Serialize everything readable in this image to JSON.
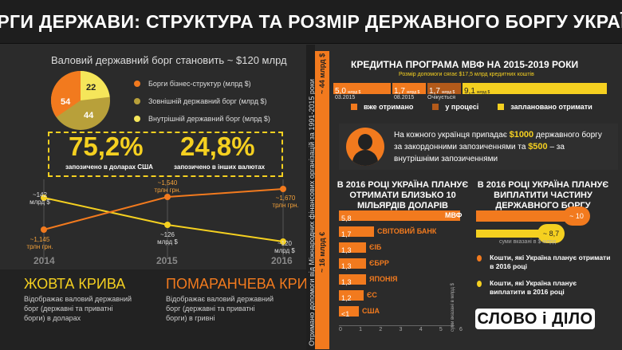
{
  "header": {
    "title": "БОРГИ ДЕРЖАВИ: СТРУКТУРА ТА РОЗМІР ДЕРЖАВНОГО БОРГУ УКРАЇНИ"
  },
  "gross_debt": {
    "title": "Валовий державний борг становить ~ $120 млрд",
    "legend": [
      {
        "label": "Борги бізнес-структур (млрд $)",
        "color": "#f27a1e",
        "value": "54"
      },
      {
        "label": "Зовнішній державний борг (млрд $)",
        "color": "#b8a03a",
        "value": "44"
      },
      {
        "label": "Внутрішній державний борг (млрд $)",
        "color": "#f5e65a",
        "value": "22"
      }
    ]
  },
  "currency_split": {
    "usd_pct": "75,2%",
    "usd_label": "запозичено в доларах США",
    "other_pct": "24,8%",
    "other_label": "запозичено в інших валютах"
  },
  "line_chart": {
    "years": [
      "2014",
      "2015",
      "2016"
    ],
    "orange_labels": [
      "~1,145\nтрлн грн.",
      "~1,540\nтрлн грн.",
      "~1,670\nтрлн грн."
    ],
    "yellow_labels": [
      "~142\nмлрд $",
      "~126\nмлрд $",
      "~120\nмлрд $"
    ]
  },
  "legend_bottom": {
    "yellow_title": "ЖОВТА КРИВА",
    "yellow_desc": "Відображає валовий державний борг (державні та приватні борги) в доларах",
    "orange_title": "ПОМАРАНЧЕВА КРИВА",
    "orange_desc": "Відображає валовий державний борг (державні та приватні борги) в гривні"
  },
  "vertical": {
    "text": "Отримано допомоги від Міжнародних фінансових організацій за 1991-2015 роки",
    "top_value": "~ 44 млрд $",
    "bottom_value": "~ 16 млрд €"
  },
  "imf": {
    "title": "КРЕДИТНА ПРОГРАМА МВФ НА 2015-2019 РОКИ",
    "subtitle": "Розмір допомоги сягає $17,5 млрд кредитних коштів",
    "segments": [
      {
        "value": "5,0",
        "unit": "млрд $",
        "date": "03.2015",
        "status": "received"
      },
      {
        "value": "1,7",
        "unit": "млрд $",
        "date": "08.2015",
        "status": "received"
      },
      {
        "value": "1,7",
        "unit": "млрд $",
        "date": "Очікується",
        "status": "process"
      },
      {
        "value": "9,1",
        "unit": "млрд $",
        "date": "",
        "status": "planned"
      }
    ],
    "legend": [
      {
        "label": "вже отримано",
        "color": "#f27a1e"
      },
      {
        "label": "у процесі",
        "color": "#b35a1a"
      },
      {
        "label": "заплановано отримати",
        "color": "#f5d020"
      }
    ]
  },
  "per_capita": {
    "text_a": "На кожного українця припадає ",
    "amount1": "$1000",
    "text_b": " державного боргу за закордонними запозиченнями та ",
    "amount2": "$500",
    "text_c": " – за внутрішніми запозиченнями"
  },
  "credits_2016": {
    "title": "В 2016 РОЦІ УКРАЇНА ПЛАНУЄ ОТРИМАТИ БЛИЗЬКО 10 МІЛЬЯРДІВ ДОЛАРІВ КРЕДИТНИХ КОШТІВ",
    "axis_label": "суми вказані в млрд $",
    "ticks": [
      "0",
      "1",
      "2",
      "3",
      "4",
      "5",
      "6"
    ],
    "bars": [
      {
        "value": "5,8",
        "label": "МВФ"
      },
      {
        "value": "1,7",
        "label": "СВІТОВИЙ БАНК"
      },
      {
        "value": "1,3",
        "label": "ЄІБ"
      },
      {
        "value": "1,3",
        "label": "ЄБРР"
      },
      {
        "value": "1,3",
        "label": "ЯПОНІЯ"
      },
      {
        "value": "1,2",
        "label": "ЄС"
      },
      {
        "value": "<1",
        "label": "США"
      }
    ]
  },
  "repay_2016": {
    "title": "В 2016 РОЦІ УКРАЇНА ПЛАНУЄ ВИПЛАТИТИ ЧАСТИНУ ДЕРЖАВНОГО БОРГУ",
    "receive_value": "~ 10",
    "pay_value": "~ 8,7",
    "axis_label": "суми вказані в $ млрд",
    "legend": [
      {
        "label": "Кошти, які Україна планує отримати в 2016 році",
        "color": "#f27a1e"
      },
      {
        "label": "Кошти, які Україна планує виплатити в 2016 році",
        "color": "#f5d020"
      }
    ]
  },
  "logo": {
    "text": "СЛОВО і ДІЛО"
  }
}
